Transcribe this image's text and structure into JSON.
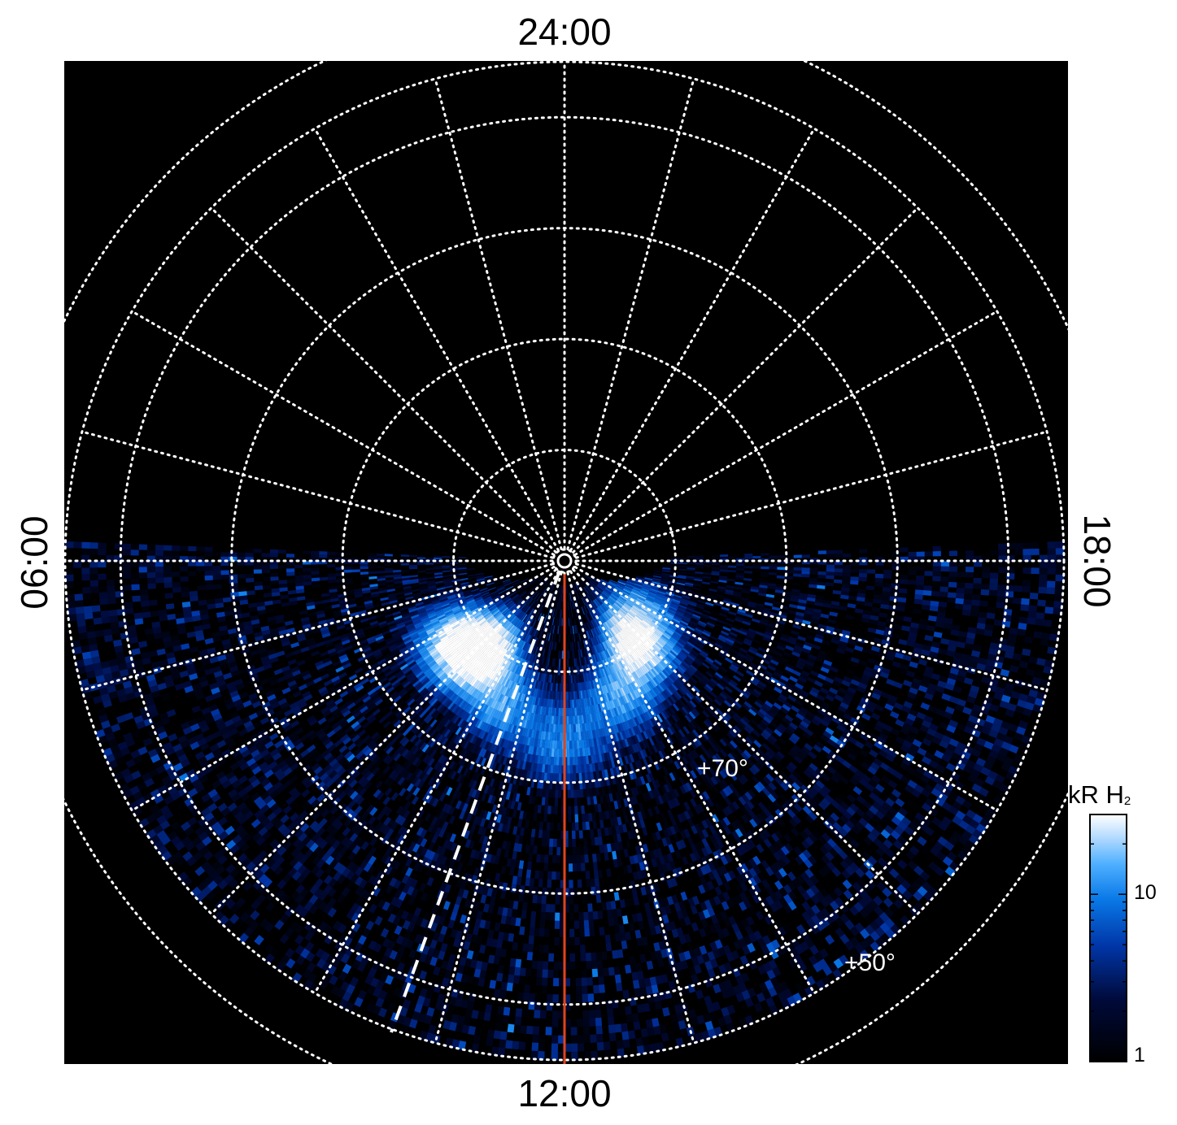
{
  "chart_data": {
    "type": "heatmap",
    "projection": "polar",
    "background": "#000000",
    "grid": true,
    "grid_style": "dotted",
    "local_time_labels": {
      "top": "24:00",
      "left": "06:00",
      "bottom": "12:00",
      "right": "18:00"
    },
    "latitude_labels": [
      "+70°",
      "+50°"
    ],
    "latitude_circles_deg": [
      90,
      80,
      70,
      60,
      50,
      40
    ],
    "meridian_step_hours": 1,
    "data_coverage": "dayside hemisphere (approx. 06:00 to 18:00 through 12:00)",
    "auroral_emission": [
      {
        "local_time_h": 8.5,
        "colatitude_deg": 12,
        "brightness_kR": 30
      },
      {
        "local_time_h": 9.0,
        "colatitude_deg": 11,
        "brightness_kR": 28
      },
      {
        "local_time_h": 9.5,
        "colatitude_deg": 11,
        "brightness_kR": 25
      },
      {
        "local_time_h": 10.5,
        "colatitude_deg": 14,
        "brightness_kR": 12
      },
      {
        "local_time_h": 12.0,
        "colatitude_deg": 16,
        "brightness_kR": 10
      },
      {
        "local_time_h": 13.5,
        "colatitude_deg": 13,
        "brightness_kR": 14
      },
      {
        "local_time_h": 14.5,
        "colatitude_deg": 10,
        "brightness_kR": 26
      },
      {
        "local_time_h": 15.0,
        "colatitude_deg": 9,
        "brightness_kR": 24
      },
      {
        "local_time_h": 16.0,
        "colatitude_deg": 8,
        "brightness_kR": 12
      }
    ],
    "colorbar": {
      "title": "kR H",
      "title_subscript": "2",
      "scale": "log",
      "range": [
        1,
        30
      ],
      "tick_labels": [
        "10",
        "1"
      ],
      "ticks": [
        10,
        1
      ],
      "colors": [
        "#000000",
        "#000a3a",
        "#0036a8",
        "#0a7ae8",
        "#4fb0ff",
        "#b6dcff",
        "#ffffff"
      ]
    },
    "overlays": [
      {
        "name": "solid-meridian",
        "color": "#e0441c",
        "local_time_h": 12.0
      },
      {
        "name": "dashed-line",
        "color": "#ffffff",
        "style": "dashed"
      }
    ]
  }
}
